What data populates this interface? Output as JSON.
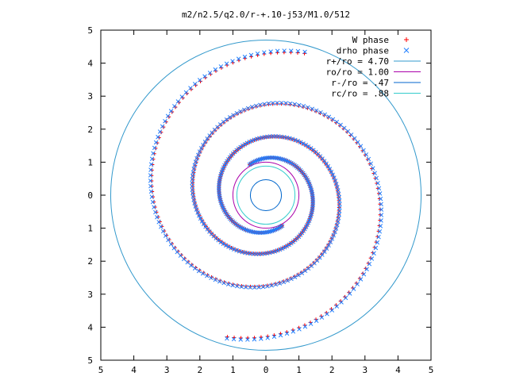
{
  "chart_data": {
    "type": "scatter",
    "title": "m2/n2.5/q2.0/r-+.10-j53/M1.0/512",
    "xlabel": "",
    "ylabel": "",
    "xlim": [
      5,
      -5
    ],
    "ylim": [
      -5,
      5
    ],
    "x_tick_labels": [
      "5",
      "4",
      "3",
      "2",
      "1",
      "0",
      "1",
      "2",
      "3",
      "4",
      "5"
    ],
    "y_tick_labels": [
      "5",
      "4",
      "3",
      "2",
      "1",
      "0",
      "1",
      "2",
      "3",
      "4",
      "5"
    ],
    "grid": false,
    "legend_position": "top-right",
    "series": [
      {
        "name": "W phase",
        "kind": "points",
        "marker": "plus",
        "color": "#ff0000",
        "note_spiral": "two-armed logarithmic-like spiral, points sampled along arms",
        "arms": [
          {
            "r_start": 1.05,
            "r_end": 4.45,
            "theta_start_deg": 118,
            "turns": 1.62
          },
          {
            "r_start": 1.05,
            "r_end": 4.45,
            "theta_start_deg": 298,
            "turns": 1.62
          }
        ]
      },
      {
        "name": "drho phase",
        "kind": "points",
        "marker": "cross",
        "color": "#1f7fff",
        "arms": [
          {
            "r_start": 1.05,
            "r_end": 4.5,
            "theta_start_deg": 118,
            "turns": 1.62
          },
          {
            "r_start": 1.05,
            "r_end": 4.5,
            "theta_start_deg": 298,
            "turns": 1.62
          }
        ]
      },
      {
        "name": "r+/ro = 4.70",
        "kind": "circle",
        "radius": 4.7,
        "color": "#3399cc"
      },
      {
        "name": "ro/ro = 1.00",
        "kind": "circle",
        "radius": 1.0,
        "color": "#aa00aa"
      },
      {
        "name": "r-/ro =  .47",
        "kind": "circle",
        "radius": 0.47,
        "color": "#0066cc"
      },
      {
        "name": "rc/ro =  .88",
        "kind": "circle",
        "radius": 0.88,
        "color": "#33cccc"
      }
    ]
  }
}
